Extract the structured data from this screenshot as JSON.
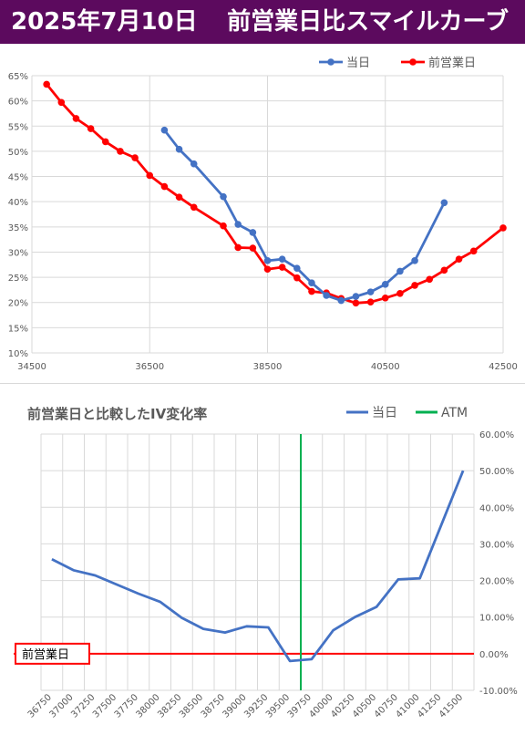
{
  "header": {
    "date": "2025年7月10日",
    "title": "前営業日比スマイルカーブ"
  },
  "colors": {
    "header_bg": "#5c0a5e",
    "today": "#4472c4",
    "prev": "#ff0000",
    "atm": "#00b050",
    "diff_line": "#4472c4",
    "grid": "#d9d9d9",
    "axis_text": "#595959"
  },
  "chart_data": [
    {
      "type": "line",
      "title": "",
      "xlabel": "",
      "ylabel": "",
      "xlim": [
        34500,
        42500
      ],
      "ylim": [
        10,
        65
      ],
      "x_ticks": [
        34500,
        36500,
        38500,
        40500,
        42500
      ],
      "y_ticks": [
        "10%",
        "15%",
        "20%",
        "25%",
        "30%",
        "35%",
        "40%",
        "45%",
        "50%",
        "55%",
        "60%",
        "65%"
      ],
      "y_tick_values": [
        10,
        15,
        20,
        25,
        30,
        35,
        40,
        45,
        50,
        55,
        60,
        65
      ],
      "legend": "top-right",
      "grid": true,
      "series": [
        {
          "name": "当日",
          "color": "#4472c4",
          "x": [
            36750,
            37000,
            37250,
            37750,
            38000,
            38250,
            38500,
            38750,
            39000,
            39250,
            39500,
            39750,
            40000,
            40250,
            40500,
            40750,
            41000,
            41500
          ],
          "values": [
            54.2,
            50.4,
            47.5,
            41.0,
            35.5,
            33.9,
            28.3,
            28.6,
            26.8,
            23.9,
            21.4,
            20.4,
            21.2,
            22.1,
            23.6,
            26.2,
            28.3,
            39.8
          ]
        },
        {
          "name": "前営業日",
          "color": "#ff0000",
          "x": [
            34750,
            35000,
            35250,
            35500,
            35750,
            36000,
            36250,
            36500,
            36750,
            37000,
            37250,
            37750,
            38000,
            38250,
            38500,
            38750,
            39000,
            39250,
            39500,
            39750,
            40000,
            40250,
            40500,
            40750,
            41000,
            41250,
            41500,
            41750,
            42000,
            42500
          ],
          "values": [
            63.3,
            59.7,
            56.5,
            54.5,
            51.9,
            50.0,
            48.7,
            45.2,
            43.0,
            40.9,
            38.9,
            35.2,
            30.9,
            30.8,
            26.6,
            27.0,
            24.9,
            22.2,
            21.9,
            20.8,
            19.9,
            20.1,
            20.9,
            21.8,
            23.4,
            24.6,
            26.4,
            28.6,
            30.2,
            34.8
          ]
        }
      ]
    },
    {
      "type": "line",
      "title": "前営業日と比較したIV変化率",
      "xlabel": "",
      "ylabel": "",
      "ylim": [
        -10,
        60
      ],
      "y_ticks": [
        "-10.00%",
        "0.00%",
        "10.00%",
        "20.00%",
        "30.00%",
        "40.00%",
        "50.00%",
        "60.00%"
      ],
      "y_tick_values": [
        -10,
        0,
        10,
        20,
        30,
        40,
        50,
        60
      ],
      "legend": "top-right",
      "grid": true,
      "categories": [
        "36750",
        "37000",
        "37250",
        "37500",
        "37750",
        "38000",
        "38250",
        "38500",
        "38750",
        "39000",
        "39250",
        "39500",
        "39750",
        "40000",
        "40250",
        "40500",
        "40750",
        "41000",
        "41250",
        "41500"
      ],
      "series": [
        {
          "name": "当日",
          "color": "#4472c4",
          "values": [
            25.8,
            22.8,
            21.4,
            18.9,
            16.4,
            14.2,
            9.8,
            6.8,
            5.8,
            7.5,
            7.2,
            -2.0,
            -1.5,
            6.4,
            10.0,
            12.8,
            20.3,
            20.6,
            null,
            50.0
          ]
        },
        {
          "name": "ATM",
          "color": "#00b050",
          "vertical_at": "39750"
        }
      ],
      "baseline_label": "前営業日",
      "baseline_value": 0
    }
  ]
}
